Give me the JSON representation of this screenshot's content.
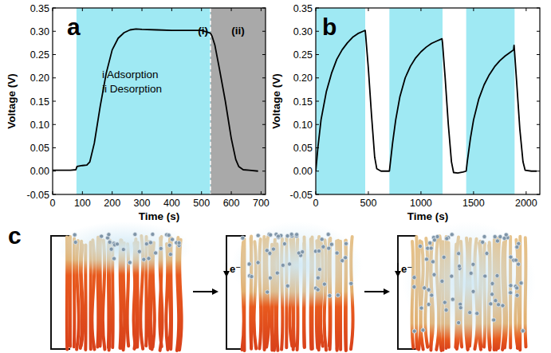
{
  "chart_data": [
    {
      "type": "line",
      "title": "a",
      "x_label": "Time (s)",
      "y_label": "Voltage (V)",
      "annotations": [
        "(i)",
        "(ii)",
        "i Adsorption",
        "ii Desorption"
      ],
      "xlim": [
        0,
        715
      ],
      "xticks": [
        0,
        100,
        200,
        300,
        400,
        500,
        600,
        700
      ],
      "ylim": [
        -0.05,
        0.35
      ],
      "yticks": [
        {
          "value": -0.05,
          "label": "-0.05"
        },
        {
          "value": 0,
          "label": "0.00"
        },
        {
          "value": 0.05,
          "label": "0.05"
        },
        {
          "value": 0.1,
          "label": "0.10"
        },
        {
          "value": 0.15,
          "label": "0.15"
        },
        {
          "value": 0.2,
          "label": "0.20"
        },
        {
          "value": 0.25,
          "label": "0.25"
        },
        {
          "value": 0.3,
          "label": "0.30"
        },
        {
          "value": 0.35,
          "label": "0.35"
        }
      ],
      "shaded_regions": [
        {
          "start": 80,
          "end": 530,
          "color": "#9fe9f3"
        },
        {
          "start": 530,
          "end": 715,
          "color": "#a9a9a9",
          "line_style": "dashed"
        }
      ],
      "color": "#000000",
      "x": [
        0,
        20,
        40,
        60,
        78,
        82,
        100,
        115,
        125,
        140,
        160,
        180,
        200,
        220,
        240,
        260,
        280,
        300,
        350,
        400,
        450,
        500,
        520,
        530,
        535,
        545,
        560,
        580,
        600,
        615,
        625,
        640,
        660,
        690
      ],
      "values": [
        0.002,
        0.002,
        0.002,
        0.002,
        0.003,
        0.01,
        0.012,
        0.013,
        0.02,
        0.06,
        0.14,
        0.21,
        0.26,
        0.285,
        0.297,
        0.303,
        0.305,
        0.304,
        0.303,
        0.302,
        0.302,
        0.302,
        0.298,
        0.296,
        0.29,
        0.27,
        0.22,
        0.15,
        0.07,
        0.025,
        0.01,
        0.003,
        0.002,
        0.0
      ]
    },
    {
      "type": "line",
      "title": "b",
      "x_label": "Time (s)",
      "y_label": "Voltage (V)",
      "xlim": [
        0,
        2130
      ],
      "xticks": [
        0,
        500,
        1000,
        1500,
        2000
      ],
      "ylim": [
        -0.05,
        0.35
      ],
      "yticks": [
        {
          "value": -0.05,
          "label": "-0.05"
        },
        {
          "value": 0,
          "label": "0.00"
        },
        {
          "value": 0.05,
          "label": "0.05"
        },
        {
          "value": 0.1,
          "label": "0.10"
        },
        {
          "value": 0.15,
          "label": "0.15"
        },
        {
          "value": 0.2,
          "label": "0.20"
        },
        {
          "value": 0.25,
          "label": "0.25"
        },
        {
          "value": 0.3,
          "label": "0.30"
        },
        {
          "value": 0.35,
          "label": "0.35"
        }
      ],
      "shaded_regions": [
        {
          "start": 0,
          "end": 470,
          "color": "#9fe9f3"
        },
        {
          "start": 700,
          "end": 1205,
          "color": "#9fe9f3"
        },
        {
          "start": 1430,
          "end": 1890,
          "color": "#9fe9f3"
        }
      ],
      "color": "#000000",
      "x": [
        0,
        20,
        50,
        100,
        150,
        200,
        250,
        300,
        350,
        400,
        450,
        470,
        475,
        500,
        530,
        560,
        580,
        620,
        660,
        700,
        705,
        730,
        760,
        800,
        850,
        900,
        950,
        1000,
        1050,
        1100,
        1150,
        1200,
        1205,
        1230,
        1260,
        1290,
        1310,
        1350,
        1400,
        1430,
        1440,
        1470,
        1500,
        1550,
        1600,
        1650,
        1700,
        1750,
        1800,
        1850,
        1880,
        1885,
        1890,
        1910,
        1940,
        1970,
        1990,
        2050,
        2100
      ],
      "values": [
        0,
        0.05,
        0.11,
        0.17,
        0.21,
        0.24,
        0.26,
        0.275,
        0.287,
        0.295,
        0.3,
        0.302,
        0.29,
        0.22,
        0.12,
        0.03,
        0.005,
        0,
        0,
        0,
        0.01,
        0.06,
        0.11,
        0.16,
        0.2,
        0.225,
        0.243,
        0.256,
        0.266,
        0.274,
        0.279,
        0.284,
        0.275,
        0.2,
        0.1,
        0.02,
        -0.003,
        -0.004,
        -0.002,
        0,
        0.02,
        0.07,
        0.11,
        0.155,
        0.185,
        0.207,
        0.224,
        0.237,
        0.247,
        0.255,
        0.26,
        0.27,
        0.255,
        0.19,
        0.09,
        0.02,
        0.002,
        0,
        0
      ]
    }
  ],
  "diagram": {
    "title": "c",
    "labels": [
      "e⁻",
      "e⁻"
    ]
  }
}
